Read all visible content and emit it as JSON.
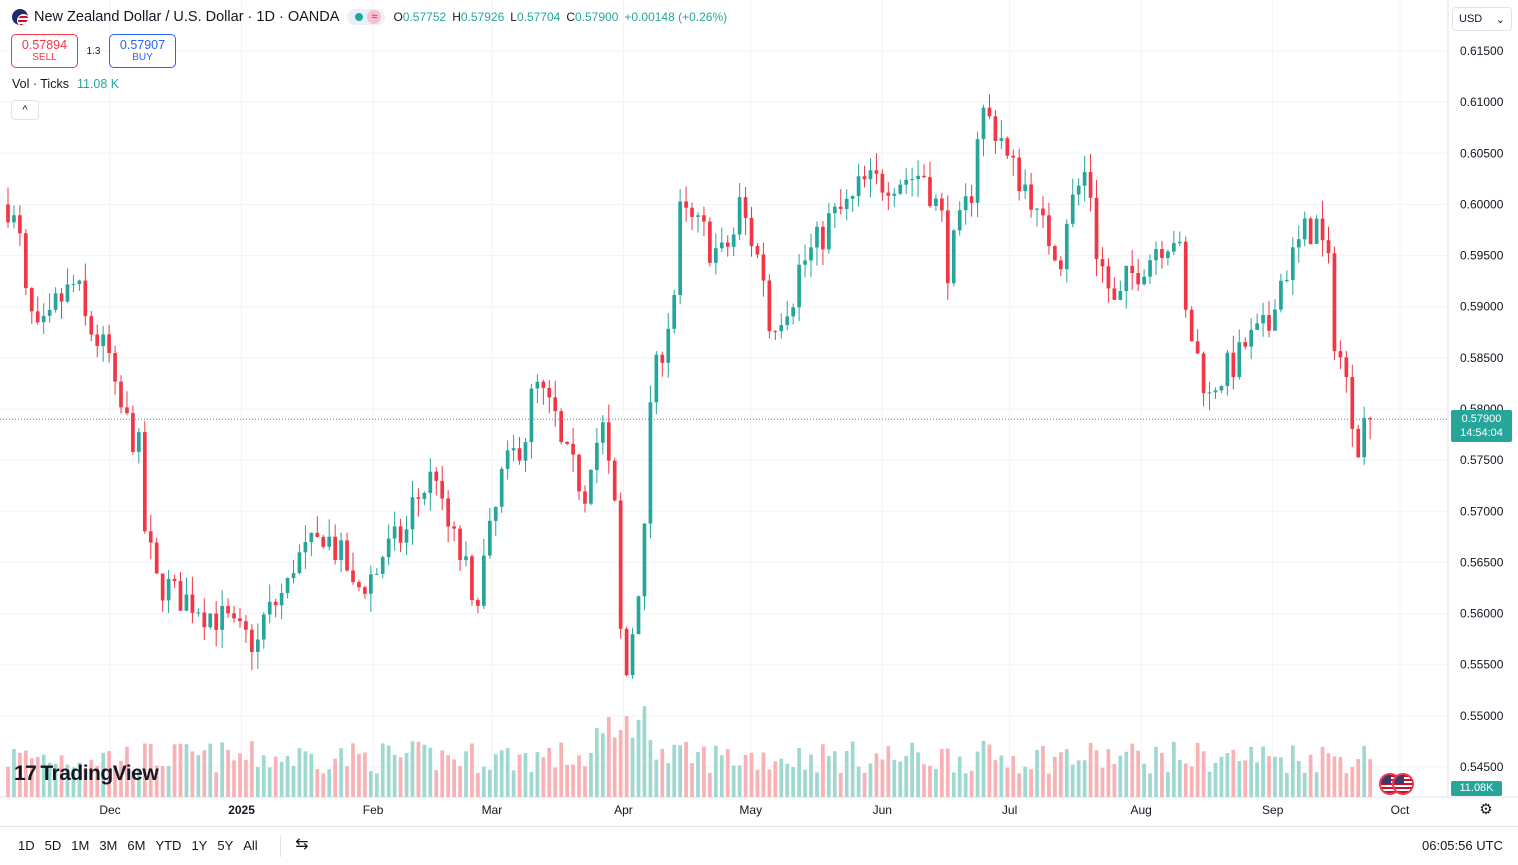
{
  "header": {
    "symbol_title": "New Zealand Dollar / U.S. Dollar · 1D · OANDA",
    "ohlc": [
      {
        "key": "O",
        "value": "0.57752"
      },
      {
        "key": "H",
        "value": "0.57926"
      },
      {
        "key": "L",
        "value": "0.57704"
      },
      {
        "key": "C",
        "value": "0.57900"
      },
      {
        "key": "",
        "value": "+0.00148 (+0.26%)"
      }
    ]
  },
  "trade": {
    "sell_price": "0.57894",
    "sell_label": "SELL",
    "spread": "1.3",
    "buy_price": "0.57907",
    "buy_label": "BUY"
  },
  "volume_legend": {
    "label": "Vol · Ticks",
    "value": "11.08 K"
  },
  "currency": "USD",
  "price_axis": {
    "ticks": [
      "0.61500",
      "0.61000",
      "0.60500",
      "0.60000",
      "0.59500",
      "0.59000",
      "0.58500",
      "0.58000",
      "0.57500",
      "0.57000",
      "0.56500",
      "0.56000",
      "0.55500",
      "0.55000",
      "0.54500"
    ],
    "last_price": "0.57900",
    "countdown": "14:54:04",
    "volume_tag": "11.08K"
  },
  "time_axis": {
    "labels": [
      "Dec",
      "2025",
      "Feb",
      "Mar",
      "Apr",
      "May",
      "Jun",
      "Jul",
      "Aug",
      "Sep",
      "Oct"
    ]
  },
  "watermark": "TradingView",
  "bottom_bar": {
    "ranges": [
      "1D",
      "5D",
      "1M",
      "3M",
      "6M",
      "YTD",
      "1Y",
      "5Y",
      "All"
    ],
    "clock": "06:05:56 UTC"
  },
  "colors": {
    "up": "#26a69a",
    "down": "#f23645",
    "vol_up": "#9fd8cf",
    "vol_down": "#f8b1b4",
    "grid": "#f0f3fa"
  },
  "chart_data": {
    "type": "candlestick",
    "series": [
      {
        "name": "New Zealand Dollar / U.S. Dollar",
        "anchors": [
          [
            "2024-11-13",
            0.6
          ],
          [
            "2024-11-20",
            0.587
          ],
          [
            "2024-11-28",
            0.592
          ],
          [
            "2024-12-06",
            0.585
          ],
          [
            "2024-12-13",
            0.576
          ],
          [
            "2024-12-18",
            0.563
          ],
          [
            "2024-12-31",
            0.56
          ],
          [
            "2025-01-10",
            0.557
          ],
          [
            "2025-01-20",
            0.565
          ],
          [
            "2025-01-27",
            0.568
          ],
          [
            "2025-02-03",
            0.562
          ],
          [
            "2025-02-14",
            0.568
          ],
          [
            "2025-02-21",
            0.574
          ],
          [
            "2025-03-03",
            0.56
          ],
          [
            "2025-03-07",
            0.57
          ],
          [
            "2025-03-18",
            0.582
          ],
          [
            "2025-03-28",
            0.572
          ],
          [
            "2025-04-02",
            0.578
          ],
          [
            "2025-04-08",
            0.554
          ],
          [
            "2025-04-14",
            0.581
          ],
          [
            "2025-04-21",
            0.599
          ],
          [
            "2025-04-30",
            0.595
          ],
          [
            "2025-05-05",
            0.6
          ],
          [
            "2025-05-12",
            0.588
          ],
          [
            "2025-05-23",
            0.597
          ],
          [
            "2025-06-03",
            0.602
          ],
          [
            "2025-06-17",
            0.603
          ],
          [
            "2025-06-23",
            0.594
          ],
          [
            "2025-07-01",
            0.609
          ],
          [
            "2025-07-11",
            0.601
          ],
          [
            "2025-07-18",
            0.595
          ],
          [
            "2025-07-24",
            0.603
          ],
          [
            "2025-07-31",
            0.59
          ],
          [
            "2025-08-08",
            0.595
          ],
          [
            "2025-08-14",
            0.597
          ],
          [
            "2025-08-22",
            0.581
          ],
          [
            "2025-08-29",
            0.585
          ],
          [
            "2025-09-05",
            0.588
          ],
          [
            "2025-09-12",
            0.596
          ],
          [
            "2025-09-17",
            0.598
          ],
          [
            "2025-09-23",
            0.585
          ],
          [
            "2025-09-26",
            0.577
          ],
          [
            "2025-09-30",
            0.579
          ]
        ]
      }
    ],
    "last": {
      "open": 0.57752,
      "high": 0.57926,
      "low": 0.57704,
      "close": 0.579
    },
    "ylim": [
      0.543,
      0.617
    ]
  }
}
